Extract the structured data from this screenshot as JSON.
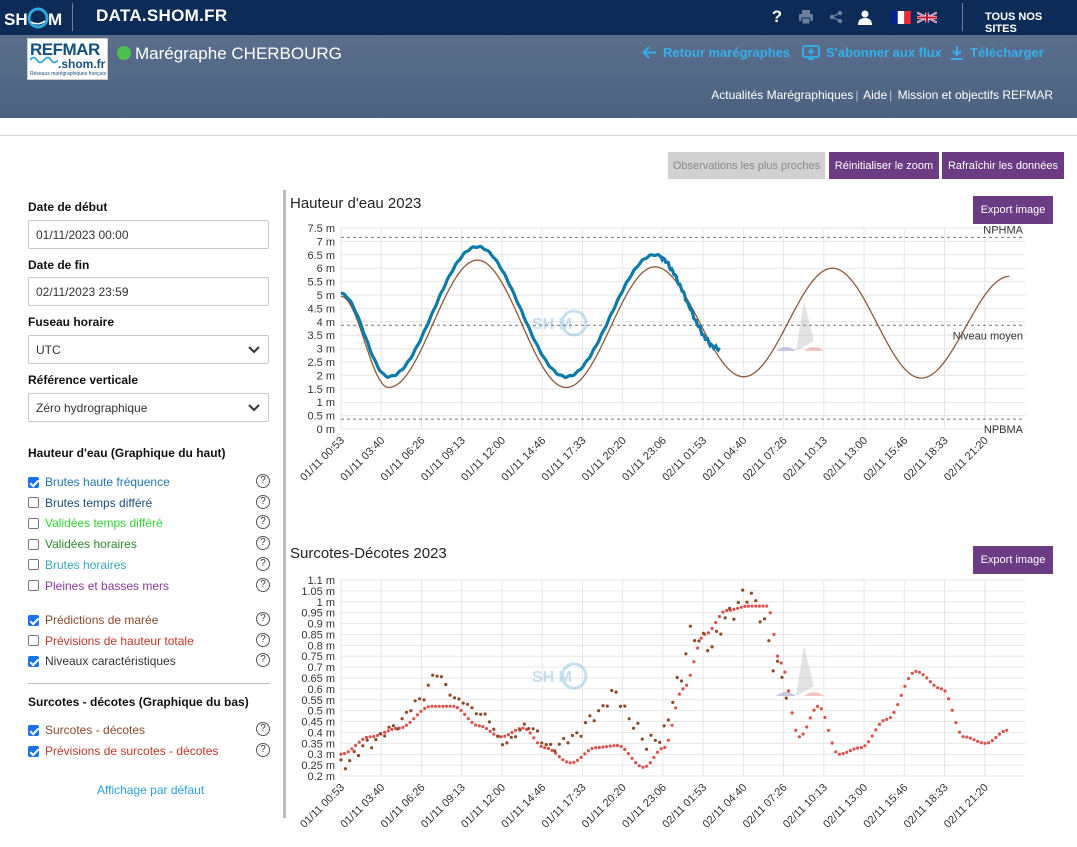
{
  "topbar": {
    "logo_text": "SHOM",
    "site_title": "DATA.SHOM.FR",
    "help_icon": "?",
    "all_sites": "TOUS NOS SITES",
    "icons": [
      "help-icon",
      "print-icon",
      "share-icon",
      "user-icon",
      "flag-fr-icon",
      "flag-uk-icon"
    ]
  },
  "header": {
    "refmar_title": "REFMAR",
    "refmar_domain": ".shom.fr",
    "refmar_tagline": "Réseaux marégraphiques français",
    "station": "Marégraphe CHERBOURG",
    "status_color": "#4cc04c",
    "back_link": "Retour marégraphes",
    "subscribe_link": "S'abonner aux flux",
    "download_link": "Télécharger",
    "sublinks": [
      "Actualités Marégraphiques",
      "Aide",
      "Mission et objectifs REFMAR"
    ]
  },
  "toolbar": {
    "nearest": "Observations les plus proches",
    "reset_zoom": "Réinitialiser le zoom",
    "refresh": "Rafraîchir les données"
  },
  "sidebar": {
    "start_label": "Date de début",
    "start_value": "01/11/2023 00:00",
    "end_label": "Date de fin",
    "end_value": "02/11/2023 23:59",
    "tz_label": "Fuseau horaire",
    "tz_value": "UTC",
    "ref_label": "Référence verticale",
    "ref_value": "Zéro hydrographique",
    "section_top": "Hauteur d'eau (Graphique du haut)",
    "section_bottom": "Surcotes - décotes (Graphique du bas)",
    "top_options": [
      {
        "label": "Brutes haute fréquence",
        "checked": true,
        "color": "#1f77b4"
      },
      {
        "label": "Brutes temps différé",
        "checked": false,
        "color": "#1a4f7a"
      },
      {
        "label": "Validées temps différé",
        "checked": false,
        "color": "#2fd62f"
      },
      {
        "label": "Validées horaires",
        "checked": false,
        "color": "#2e8b2e"
      },
      {
        "label": "Brutes horaires",
        "checked": false,
        "color": "#3aa8b8"
      },
      {
        "label": "Pleines et basses mers",
        "checked": false,
        "color": "#8a3a9e"
      }
    ],
    "top_options2": [
      {
        "label": "Prédictions de marée",
        "checked": true,
        "color": "#8b4b2a"
      },
      {
        "label": "Prévisions de hauteur totale",
        "checked": false,
        "color": "#c0392b"
      },
      {
        "label": "Niveaux caractéristiques",
        "checked": true,
        "color": "#333333"
      }
    ],
    "bottom_options": [
      {
        "label": "Surcotes - décotes",
        "checked": true,
        "color": "#8b4b2a"
      },
      {
        "label": "Prévisions de surcotes - décotes",
        "checked": true,
        "color": "#c0392b"
      }
    ],
    "default_link": "Affichage par défaut"
  },
  "chart_data": [
    {
      "type": "line",
      "title": "Hauteur d'eau 2023",
      "export_label": "Export image",
      "y_unit": "m",
      "ylim": [
        0,
        7.5
      ],
      "y_ticks": [
        "0 m",
        "0.5 m",
        "1 m",
        "1.5 m",
        "2 m",
        "2.5 m",
        "3 m",
        "3.5 m",
        "4 m",
        "4.5 m",
        "5 m",
        "5.5 m",
        "6 m",
        "6.5 m",
        "7 m",
        "7.5 m"
      ],
      "x_ticks": [
        "01/11 00:53",
        "01/11 03:40",
        "01/11 06:26",
        "01/11 09:13",
        "01/11 12:00",
        "01/11 14:46",
        "01/11 17:33",
        "01/11 20:20",
        "01/11 23:06",
        "02/11 01:53",
        "02/11 04:40",
        "02/11 07:26",
        "02/11 10:13",
        "02/11 13:00",
        "02/11 15:46",
        "02/11 18:33",
        "02/11 21:20"
      ],
      "reference_lines": [
        {
          "name": "NPHMA",
          "value": 7.15
        },
        {
          "name": "Niveau moyen",
          "value": 3.87
        },
        {
          "name": "NPBMA",
          "value": 0.37
        }
      ],
      "series": [
        {
          "name": "Prédictions de marée",
          "color": "#8b5a3c",
          "x_hours": [
            0.0,
            3.27,
            9.37,
            15.47,
            21.57,
            27.67,
            33.77,
            39.87,
            45.97
          ],
          "values": [
            4.95,
            1.55,
            6.3,
            1.55,
            6.05,
            1.95,
            6.0,
            1.9,
            5.7
          ]
        },
        {
          "name": "Brutes haute fréquence",
          "color": "#0e7aa8",
          "x_hours": [
            0.0,
            3.27,
            9.37,
            15.47,
            21.57,
            26.0
          ],
          "values": [
            5.05,
            1.95,
            6.8,
            1.95,
            6.5,
            3.0
          ]
        }
      ]
    },
    {
      "type": "scatter",
      "title": "Surcotes-Décotes 2023",
      "export_label": "Export image",
      "y_unit": "m",
      "ylim": [
        0.2,
        1.1
      ],
      "y_ticks": [
        "0.2 m",
        "0.25 m",
        "0.3 m",
        "0.35 m",
        "0.4 m",
        "0.45 m",
        "0.5 m",
        "0.55 m",
        "0.6 m",
        "0.65 m",
        "0.7 m",
        "0.75 m",
        "0.8 m",
        "0.85 m",
        "0.9 m",
        "0.95 m",
        "1 m",
        "1.05 m",
        "1.1 m"
      ],
      "x_ticks": [
        "01/11 00:53",
        "01/11 03:40",
        "01/11 06:26",
        "01/11 09:13",
        "01/11 12:00",
        "01/11 14:46",
        "01/11 17:33",
        "01/11 20:20",
        "01/11 23:06",
        "02/11 01:53",
        "02/11 04:40",
        "02/11 07:26",
        "02/11 10:13",
        "02/11 13:00",
        "02/11 15:46",
        "02/11 18:33",
        "02/11 21:20"
      ],
      "series": [
        {
          "name": "Prévisions de surcotes - décotes",
          "color": "#d9534f",
          "x_hours": [
            0.0,
            2.0,
            4.0,
            6.2,
            7.7,
            9.5,
            11.0,
            12.5,
            14.0,
            15.8,
            17.5,
            19.0,
            20.8,
            22.2,
            23.5,
            25.0,
            26.5,
            28.0,
            29.3,
            30.2,
            31.5,
            32.8,
            34.2,
            35.7,
            37.5,
            39.5,
            41.3,
            42.8,
            44.3,
            45.8
          ],
          "values": [
            0.3,
            0.38,
            0.42,
            0.52,
            0.52,
            0.43,
            0.38,
            0.42,
            0.33,
            0.26,
            0.33,
            0.34,
            0.24,
            0.33,
            0.6,
            0.85,
            0.96,
            0.98,
            0.98,
            0.72,
            0.38,
            0.52,
            0.3,
            0.33,
            0.46,
            0.68,
            0.6,
            0.38,
            0.35,
            0.41
          ]
        },
        {
          "name": "Surcotes - décotes",
          "color": "#8b4b2a",
          "x_hours": [
            0.0,
            2.0,
            3.5,
            5.5,
            6.5,
            8.0,
            9.8,
            11.2,
            12.8,
            14.5,
            16.0,
            17.5,
            18.8,
            20.0,
            21.0,
            22.0,
            23.2,
            24.0,
            25.5,
            26.5,
            28.0,
            28.8,
            29.8,
            30.6
          ],
          "values": [
            0.25,
            0.35,
            0.42,
            0.55,
            0.67,
            0.55,
            0.48,
            0.35,
            0.43,
            0.33,
            0.38,
            0.48,
            0.58,
            0.45,
            0.35,
            0.38,
            0.62,
            0.85,
            0.8,
            0.93,
            1.04,
            0.95,
            0.72,
            0.6
          ]
        }
      ]
    }
  ]
}
